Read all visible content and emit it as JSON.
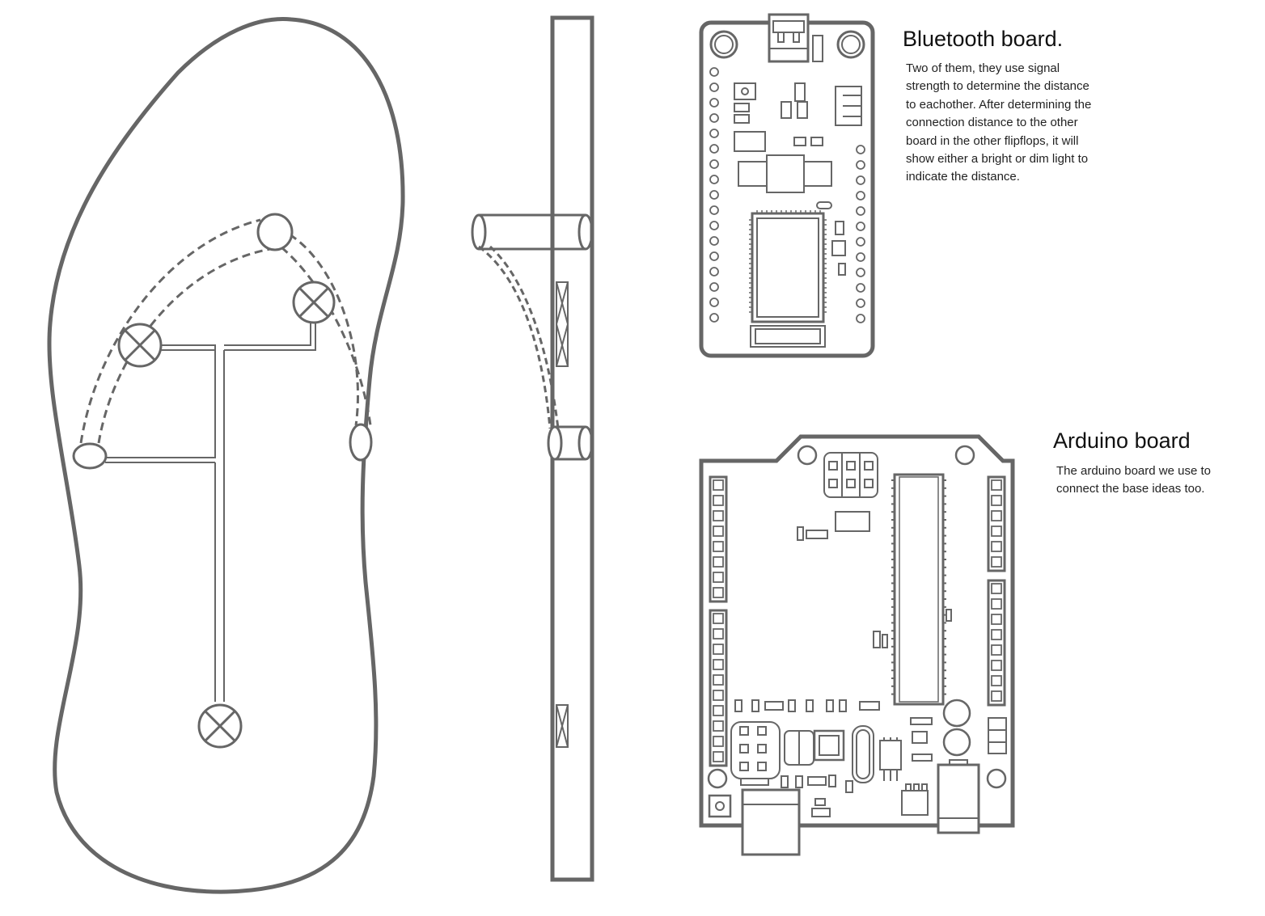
{
  "bluetooth_board": {
    "title": "Bluetooth board.",
    "description": "Two of them, they use signal strength to  determine the distance to eachother. After determining the connection distance to the other board in the other flipflops, it will show either a bright or dim light to indicate the distance."
  },
  "arduino_board": {
    "title": "Arduino board",
    "description": "The arduino board we use to connect the base ideas too."
  },
  "colors": {
    "line": "#666666",
    "background": "#ffffff"
  }
}
